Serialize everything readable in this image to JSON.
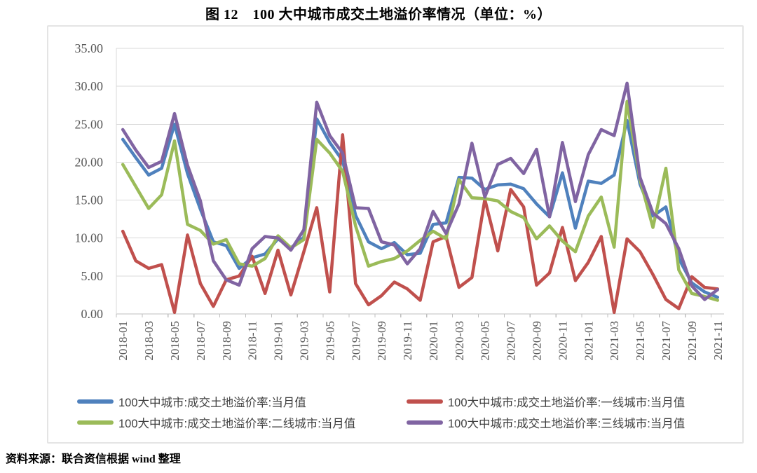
{
  "title": "图 12　100 大中城市成交土地溢价率情况（单位：%）",
  "source_note": "资料来源：联合资信根据 wind 整理",
  "colors": {
    "series_blue": "#4F81BD",
    "series_red": "#C0504D",
    "series_green": "#9BBB59",
    "series_purple": "#8064A2",
    "gridline": "#D9D9D9",
    "axis_line": "#BFBFBF",
    "tick_label": "#595959",
    "legend_text": "#3F3F3F",
    "frame_border": "#E4E4E4"
  },
  "chart_data": {
    "type": "line",
    "title": "图 12　100 大中城市成交土地溢价率情况（单位：%）",
    "xlabel": "",
    "ylabel": "",
    "ylim": [
      0,
      35
    ],
    "y_tick_step": 5,
    "y_tick_labels": [
      "0.00",
      "5.00",
      "10.00",
      "15.00",
      "20.00",
      "25.00",
      "30.00",
      "35.00"
    ],
    "x_tick_every": 2,
    "grid": true,
    "legend_position": "bottom",
    "categories": [
      "2018-01",
      "2018-02",
      "2018-03",
      "2018-04",
      "2018-05",
      "2018-06",
      "2018-07",
      "2018-08",
      "2018-09",
      "2018-10",
      "2018-11",
      "2018-12",
      "2019-01",
      "2019-02",
      "2019-03",
      "2019-04",
      "2019-05",
      "2019-06",
      "2019-07",
      "2019-08",
      "2019-09",
      "2019-10",
      "2019-11",
      "2019-12",
      "2020-01",
      "2020-02",
      "2020-03",
      "2020-04",
      "2020-05",
      "2020-06",
      "2020-07",
      "2020-08",
      "2020-09",
      "2020-10",
      "2020-11",
      "2020-12",
      "2021-01",
      "2021-02",
      "2021-03",
      "2021-04",
      "2021-05",
      "2021-06",
      "2021-07",
      "2021-08",
      "2021-09",
      "2021-10",
      "2021-11"
    ],
    "series": [
      {
        "name": "100大中城市:成交土地溢价率:当月值",
        "color": "#4F81BD",
        "values": [
          23.0,
          20.6,
          18.3,
          19.2,
          25.0,
          18.5,
          13.8,
          9.5,
          9.0,
          6.0,
          7.4,
          7.9,
          9.9,
          8.7,
          10.1,
          25.7,
          22.6,
          20.2,
          13.0,
          9.5,
          8.6,
          9.4,
          7.8,
          8.0,
          11.8,
          12.0,
          18.0,
          17.9,
          16.4,
          17.0,
          17.1,
          16.5,
          14.5,
          12.8,
          18.6,
          11.3,
          17.5,
          17.2,
          18.3,
          25.5,
          17.1,
          12.9,
          14.1,
          7.3,
          4.1,
          2.9,
          2.2
        ]
      },
      {
        "name": "100大中城市:成交土地溢价率:一线城市:当月值",
        "color": "#C0504D",
        "values": [
          10.9,
          7.0,
          6.0,
          6.5,
          0.2,
          10.4,
          4.0,
          1.0,
          4.5,
          5.0,
          7.6,
          2.7,
          8.4,
          2.5,
          8.2,
          14.0,
          2.9,
          23.6,
          4.0,
          1.2,
          2.4,
          4.2,
          3.3,
          1.8,
          9.5,
          10.2,
          3.5,
          4.8,
          15.1,
          8.3,
          16.4,
          14.1,
          3.8,
          5.4,
          11.4,
          4.4,
          6.8,
          10.2,
          0.2,
          9.9,
          8.2,
          5.2,
          1.9,
          0.7,
          4.9,
          3.5,
          3.3
        ]
      },
      {
        "name": "100大中城市:成交土地溢价率:二线城市:当月值",
        "color": "#9BBB59",
        "values": [
          19.7,
          16.8,
          13.9,
          15.7,
          22.8,
          11.8,
          11.0,
          9.2,
          9.8,
          6.6,
          6.3,
          7.3,
          10.3,
          8.7,
          9.8,
          23.0,
          21.2,
          18.8,
          11.6,
          6.3,
          6.9,
          7.3,
          8.3,
          9.7,
          10.9,
          9.9,
          17.7,
          15.3,
          15.2,
          14.9,
          13.5,
          12.7,
          9.9,
          11.6,
          9.6,
          8.2,
          12.9,
          15.4,
          8.8,
          28.0,
          17.7,
          11.4,
          19.2,
          5.8,
          2.7,
          2.3,
          1.8
        ]
      },
      {
        "name": "100大中城市:成交土地溢价率:三线城市:当月值",
        "color": "#8064A2",
        "values": [
          24.3,
          21.6,
          19.3,
          20.1,
          26.4,
          19.6,
          14.9,
          7.0,
          4.5,
          3.8,
          8.6,
          10.2,
          10.0,
          8.4,
          11.1,
          27.9,
          23.5,
          21.2,
          14.0,
          13.9,
          9.5,
          9.1,
          6.6,
          8.6,
          13.5,
          10.6,
          14.5,
          22.5,
          15.4,
          19.7,
          20.5,
          18.5,
          21.7,
          12.8,
          22.6,
          14.8,
          21.0,
          24.3,
          23.5,
          30.4,
          18.0,
          13.3,
          11.9,
          8.6,
          3.7,
          1.9,
          3.2
        ]
      }
    ]
  }
}
